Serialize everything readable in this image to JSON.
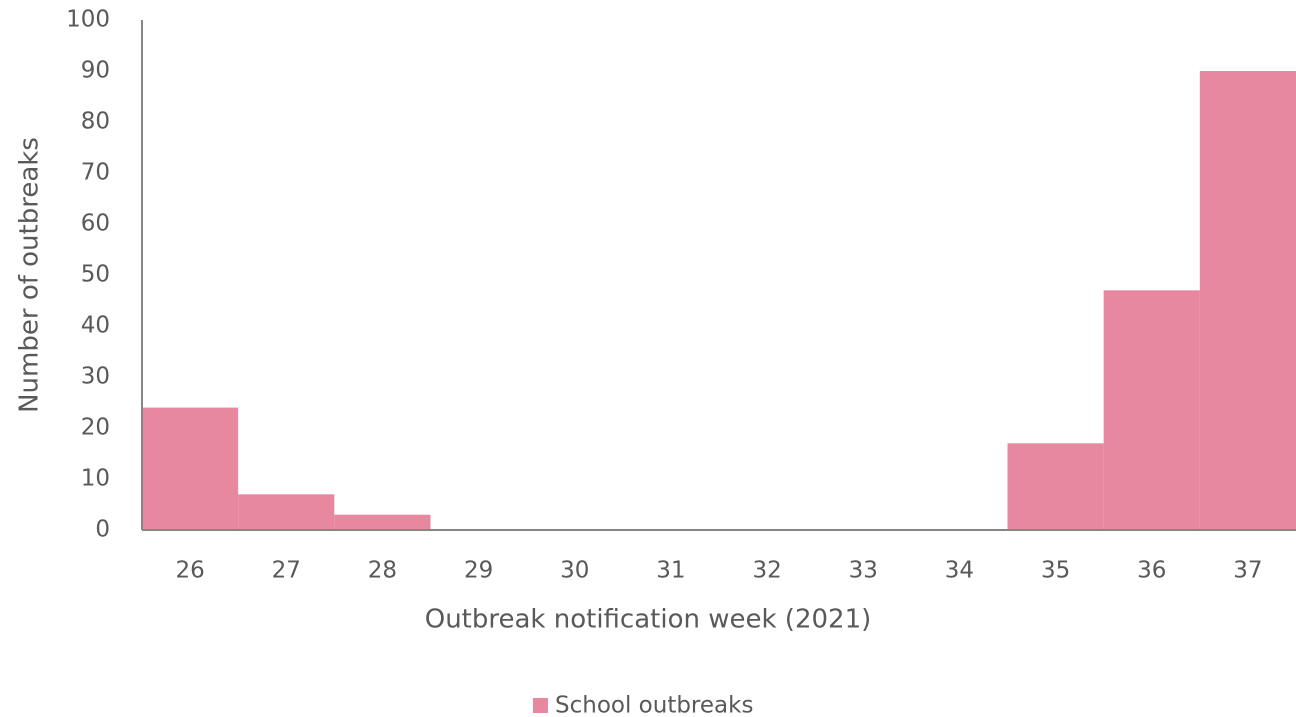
{
  "chart_data": {
    "type": "bar",
    "x_label": "Outbreak notification week (2021)",
    "y_label": "Number of outbreaks",
    "categories": [
      "26",
      "27",
      "28",
      "29",
      "30",
      "31",
      "32",
      "33",
      "34",
      "35",
      "36",
      "37"
    ],
    "series": [
      {
        "name": "School outbreaks",
        "color": "#e8889f",
        "values": [
          24,
          7,
          3,
          0,
          0,
          0,
          0,
          0,
          0,
          17,
          47,
          90
        ]
      }
    ],
    "ylim": [
      0,
      100
    ],
    "yticks": [
      0,
      10,
      20,
      30,
      40,
      50,
      60,
      70,
      80,
      90,
      100
    ],
    "grid": false,
    "legend": "bottom"
  }
}
